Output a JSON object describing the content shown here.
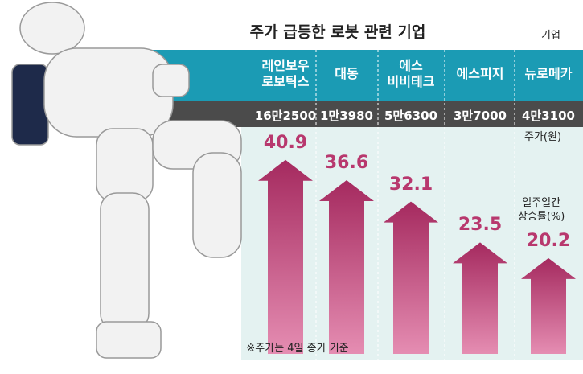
{
  "chart_data": {
    "type": "bar",
    "title": "주가 급등한 로봇 관련 기업",
    "category_header": "기업",
    "categories": [
      "레인보우\n로보틱스",
      "대동",
      "에스\n비비테크",
      "에스피지",
      "뉴로메카"
    ],
    "price_labels": [
      "16만2500",
      "1만3980",
      "5만6300",
      "3만7000",
      "4만3100"
    ],
    "price_caption": "주가(원)",
    "value_caption": "일주일간\n상승률(%)",
    "values": [
      40.9,
      36.6,
      32.1,
      23.5,
      20.2
    ],
    "color": "#b8386e",
    "note": "※주가는 4일 종가 기준"
  }
}
